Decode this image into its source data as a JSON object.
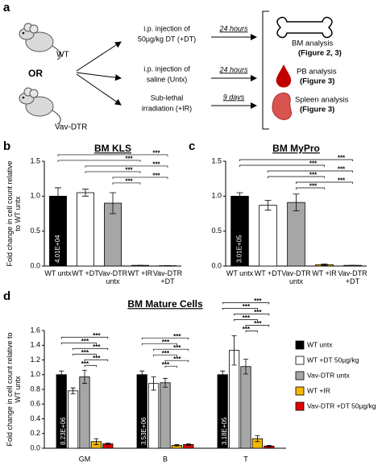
{
  "panel_labels": [
    "a",
    "b",
    "c",
    "d"
  ],
  "diagram": {
    "mice": [
      {
        "label": "WT"
      },
      {
        "label": "Vav-DTR"
      }
    ],
    "or_label": "OR",
    "treatments": [
      {
        "lines": [
          "i.p. injection of",
          "50µg/kg DT (+DT)"
        ],
        "time": "24 hours"
      },
      {
        "lines": [
          "i.p. injection of",
          "saline (Untx)"
        ],
        "time": "24 hours"
      },
      {
        "lines": [
          "Sub-lethal",
          "irradiation (+IR)"
        ],
        "time": "9 days"
      }
    ],
    "analyses": [
      {
        "name": "BM analysis",
        "ref": "(Figure 2, 3)"
      },
      {
        "name": "PB analysis",
        "ref": "(Figure 3)"
      },
      {
        "name": "Spleen analysis",
        "ref": "(Figure 3)"
      }
    ]
  },
  "chart_data": [
    {
      "type": "bar",
      "title": "BM KLS",
      "ylabel": "Fold change in cell count relative to WT untx",
      "categories": [
        "WT untx",
        "WT +DT",
        "Vav-DTR untx",
        "WT +IR",
        "Vav-DTR +DT"
      ],
      "values": [
        1.0,
        1.05,
        0.9,
        0.01,
        0.005
      ],
      "errors": [
        0.12,
        0.05,
        0.15,
        0,
        0
      ],
      "colors": [
        "#000000",
        "#ffffff",
        "#a6a6a6",
        "#f5b800",
        "#ffffff"
      ],
      "baseline_label": "4.01E+04",
      "significance_label": "***",
      "ylim": [
        0,
        1.5
      ],
      "yticks": [
        {
          "value": 0,
          "label": "0.0"
        },
        0.5,
        {
          "value": 1,
          "label": "1.0"
        },
        1.5
      ]
    },
    {
      "type": "bar",
      "title": "BM MyPro",
      "categories": [
        "WT untx",
        "WT +DT",
        "Vav-DTR untx",
        "WT +IR",
        "Vav-DTR +DT"
      ],
      "values": [
        1.0,
        0.87,
        0.91,
        0.02,
        0.01
      ],
      "errors": [
        0.05,
        0.07,
        0.12,
        0.01,
        0
      ],
      "colors": [
        "#000000",
        "#ffffff",
        "#a6a6a6",
        "#f5b800",
        "#ffffff"
      ],
      "baseline_label": "3.01E+05",
      "significance_label": "***",
      "ylim": [
        0,
        1.5
      ],
      "yticks": [
        {
          "value": 0,
          "label": "0.0"
        },
        0.5,
        {
          "value": 1,
          "label": "1.0"
        },
        1.5
      ]
    },
    {
      "type": "grouped_bar",
      "title": "BM Mature Cells",
      "ylabel": "Fold change in cell count relative to WT untx",
      "categories": [
        "GM",
        "B",
        "T"
      ],
      "series": [
        {
          "name": "WT untx",
          "color": "#000000",
          "values": [
            1.0,
            1.0,
            1.0
          ],
          "errors": [
            0.05,
            0.05,
            0.05
          ]
        },
        {
          "name": "WT +DT 50µg/kg",
          "color": "#ffffff",
          "values": [
            0.78,
            0.88,
            1.33
          ],
          "errors": [
            0.04,
            0.09,
            0.2
          ]
        },
        {
          "name": "Vav-DTR untx",
          "color": "#a6a6a6",
          "values": [
            0.97,
            0.89,
            1.11
          ],
          "errors": [
            0.09,
            0.06,
            0.1
          ]
        },
        {
          "name": "WT +IR",
          "color": "#f5b800",
          "values": [
            0.09,
            0.04,
            0.13
          ],
          "errors": [
            0.04,
            0.01,
            0.04
          ]
        },
        {
          "name": "Vav-DTR +DT 50µg/kg",
          "color": "#e00000",
          "values": [
            0.06,
            0.05,
            0.03
          ],
          "errors": [
            0.01,
            0.01,
            0.01
          ]
        }
      ],
      "baseline_labels": [
        "8.23E+06",
        "3.53E+06",
        "3.18E+05"
      ],
      "significance_label": "***",
      "ylim": [
        0,
        1.6
      ],
      "yticks": [
        {
          "value": 0,
          "label": "0.0"
        },
        0.2,
        0.4,
        0.6,
        0.8,
        {
          "value": 1,
          "label": "1.0"
        },
        1.2,
        1.4,
        1.6
      ]
    }
  ]
}
